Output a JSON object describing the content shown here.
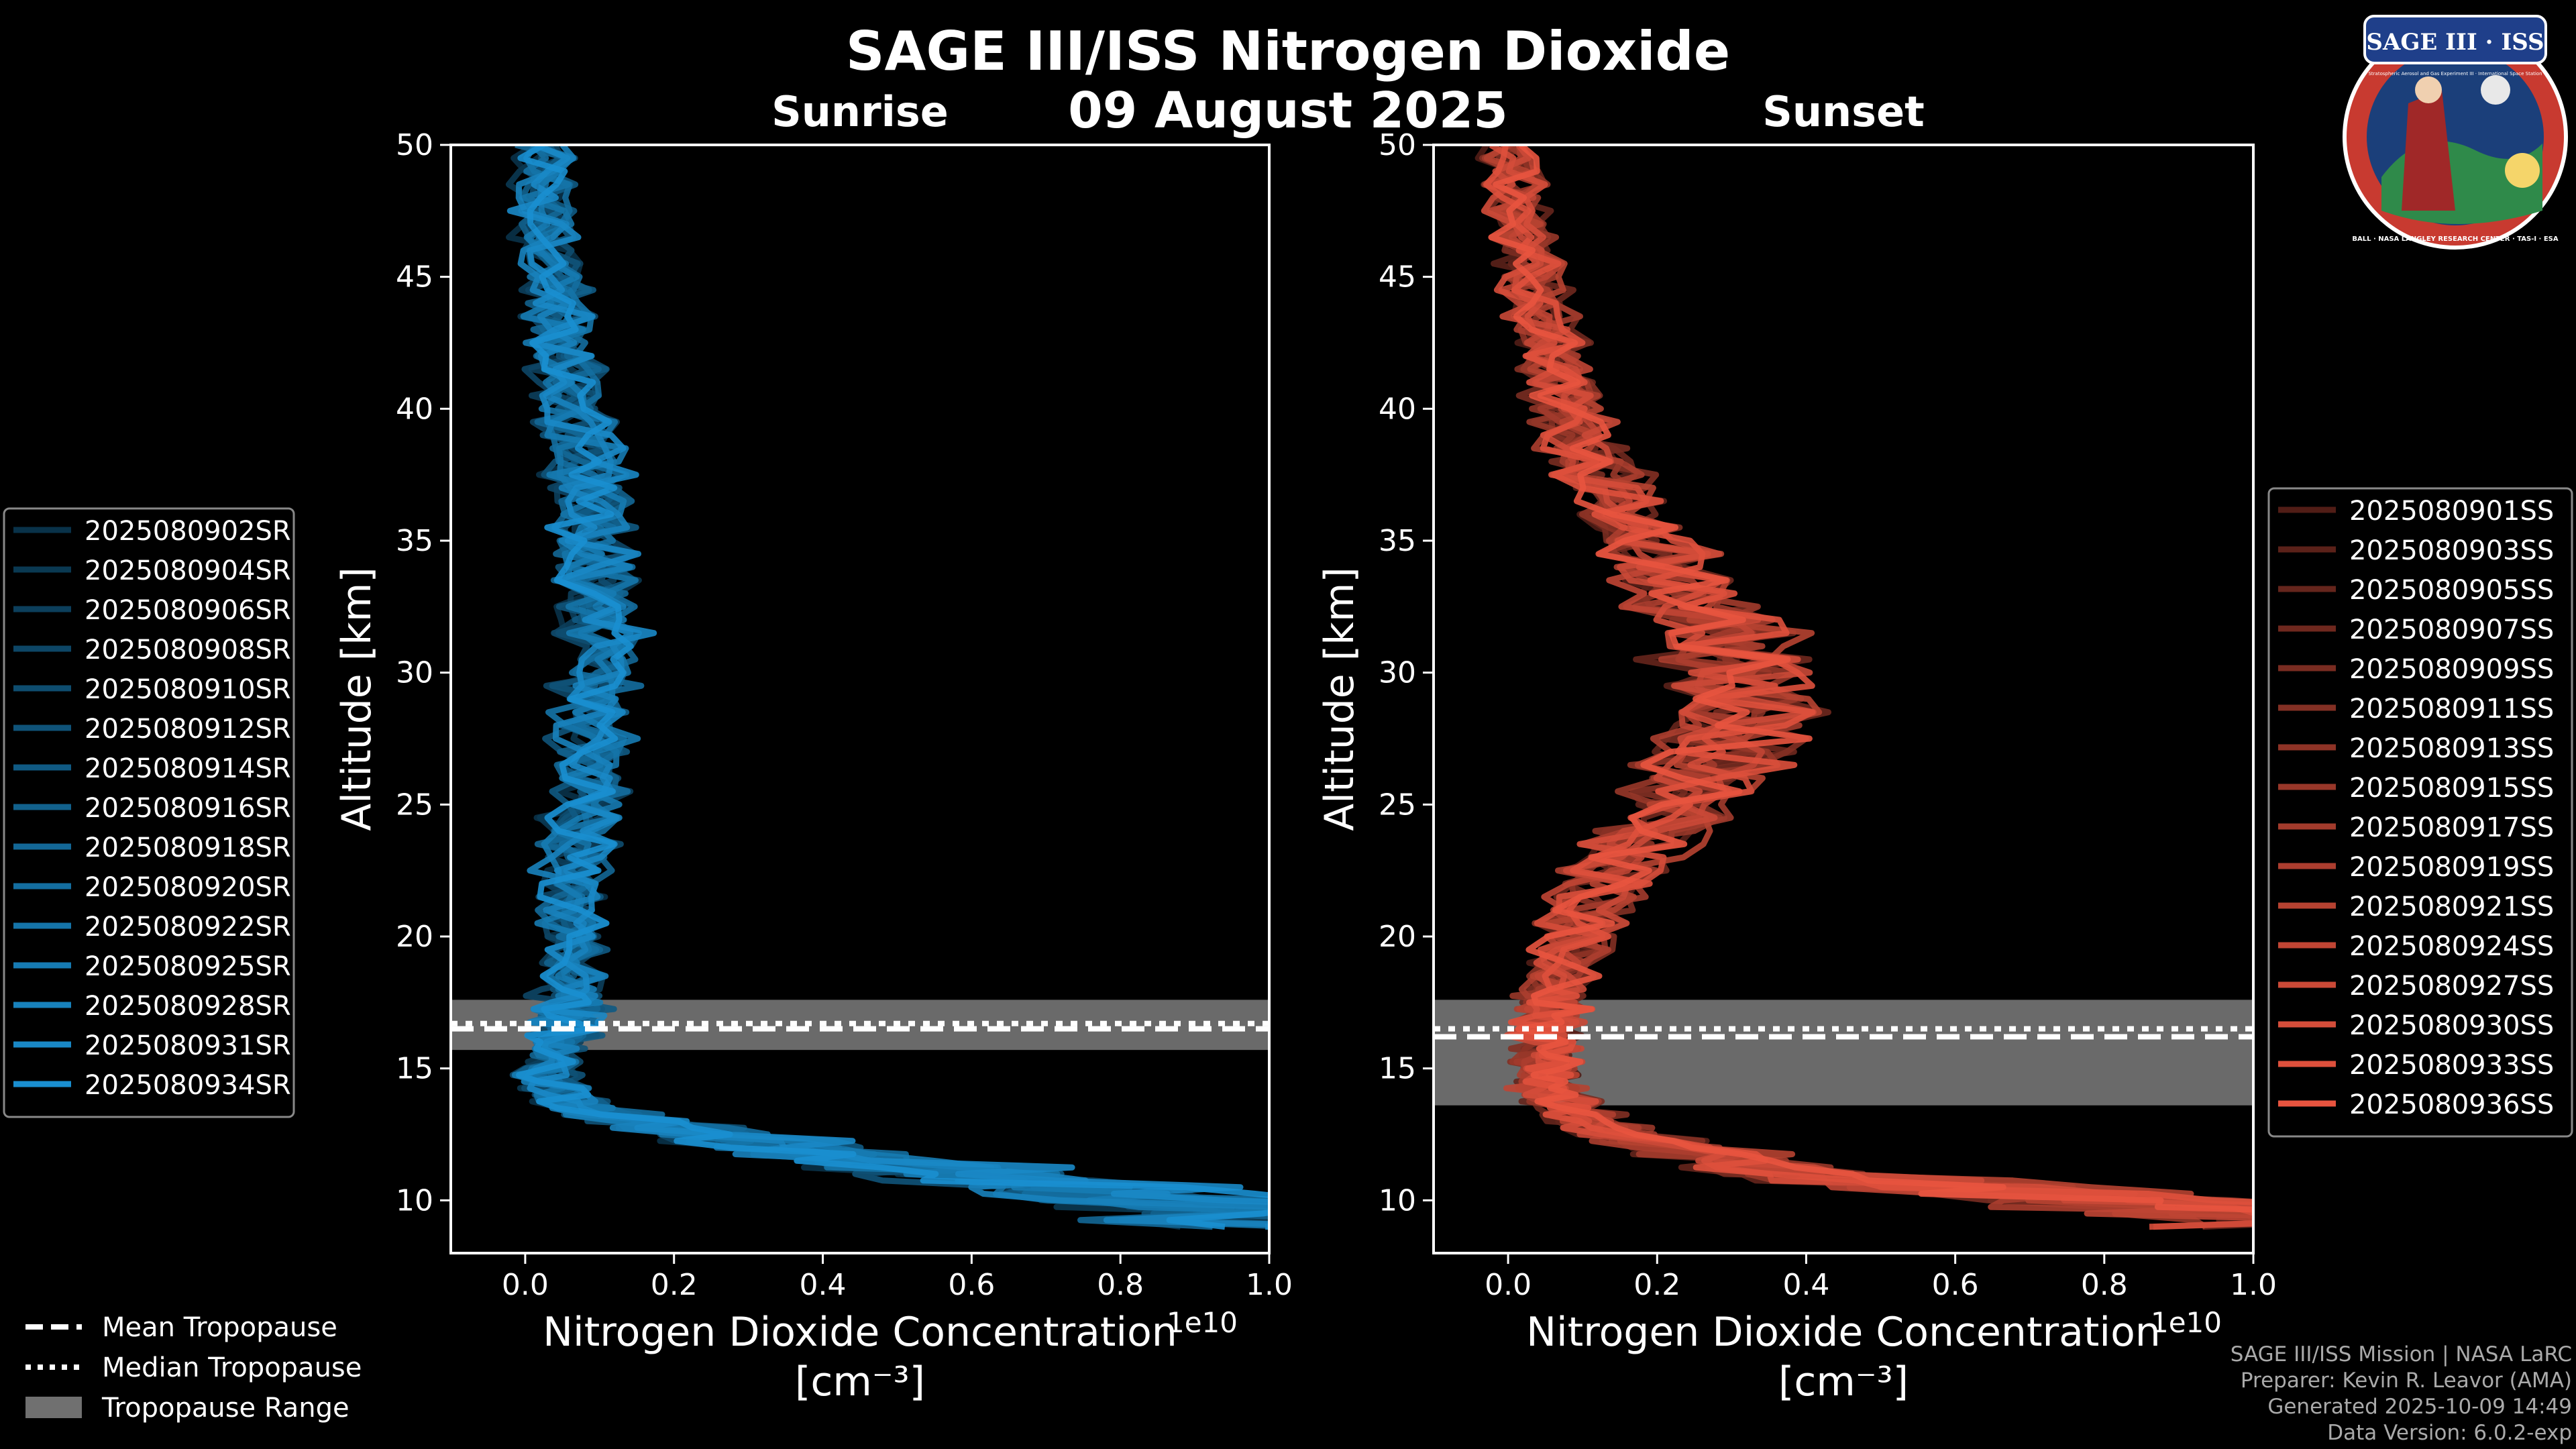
{
  "figure": {
    "title": "SAGE III/ISS Nitrogen Dioxide",
    "subtitle": "09 August 2025",
    "credits": [
      "SAGE III/ISS Mission | NASA LaRC",
      "Preparer: Kevin R. Leavor (AMA)",
      "Generated 2025-10-09 14:49",
      "Data Version: 6.0.2-exp"
    ],
    "logo": {
      "name": "SAGE III · ISS",
      "caption": "Stratospheric Aerosol and Gas Experiment III · International Space Station",
      "ring_text": "BALL · NASA LANGLEY RESEARCH CENTER · TAS-I · ESA"
    },
    "bottom_legend": [
      {
        "label": "Mean Tropopause",
        "style": "dashed"
      },
      {
        "label": "Median Tropopause",
        "style": "dotted"
      },
      {
        "label": "Tropopause Range",
        "style": "band"
      }
    ],
    "colors": {
      "sunrise": "#1a8fd0",
      "sunset": "#e8543f",
      "band": "#707070",
      "background": "#000000",
      "text": "#ffffff",
      "credit": "#aaaaaa"
    }
  },
  "chart_data": [
    {
      "type": "line",
      "title": "Sunrise",
      "xlabel": "Nitrogen Dioxide Concentration",
      "xlabel_units": "[cm⁻³]",
      "offset_label": "1e10",
      "ylabel": "Altitude [km]",
      "xlim": [
        -0.1,
        1.0
      ],
      "ylim": [
        8,
        50
      ],
      "xticks": [
        0.0,
        0.2,
        0.4,
        0.6,
        0.8,
        1.0
      ],
      "xtick_labels": [
        "0.0",
        "0.2",
        "0.4",
        "0.6",
        "0.8",
        "1.0"
      ],
      "yticks": [
        10,
        15,
        20,
        25,
        30,
        35,
        40,
        45,
        50
      ],
      "ytick_labels": [
        "10",
        "15",
        "20",
        "25",
        "30",
        "35",
        "40",
        "45",
        "50"
      ],
      "legend_position": "left",
      "tropopause": {
        "mean": 16.5,
        "median": 16.7,
        "range": [
          15.7,
          17.6
        ]
      },
      "altitude_km": [
        9,
        9.5,
        10,
        10.5,
        11,
        11.5,
        12,
        12.5,
        13,
        13.5,
        14,
        14.5,
        15,
        15.5,
        16,
        16.5,
        17,
        17.5,
        18,
        19,
        20,
        21,
        22,
        23,
        24,
        25,
        26,
        27,
        28,
        29,
        30,
        31,
        32,
        33,
        34,
        35,
        36,
        37,
        38,
        39,
        40,
        41,
        42,
        43,
        44,
        45,
        46,
        47,
        48,
        49,
        50
      ],
      "mean_profile": [
        1.1,
        1.0,
        0.9,
        0.75,
        0.6,
        0.45,
        0.35,
        0.25,
        0.15,
        0.08,
        0.05,
        0.03,
        0.03,
        0.04,
        0.05,
        0.06,
        0.06,
        0.06,
        0.06,
        0.06,
        0.06,
        0.06,
        0.06,
        0.07,
        0.07,
        0.08,
        0.08,
        0.09,
        0.09,
        0.09,
        0.1,
        0.1,
        0.1,
        0.1,
        0.1,
        0.09,
        0.09,
        0.08,
        0.08,
        0.07,
        0.06,
        0.06,
        0.05,
        0.05,
        0.04,
        0.04,
        0.03,
        0.03,
        0.02,
        0.02,
        0.02
      ],
      "series": [
        {
          "name": "2025080902SR",
          "scale": 0.92
        },
        {
          "name": "2025080904SR",
          "scale": 0.97
        },
        {
          "name": "2025080906SR",
          "scale": 1.02
        },
        {
          "name": "2025080908SR",
          "scale": 0.95
        },
        {
          "name": "2025080910SR",
          "scale": 1.05
        },
        {
          "name": "2025080912SR",
          "scale": 0.9
        },
        {
          "name": "2025080914SR",
          "scale": 1.08
        },
        {
          "name": "2025080916SR",
          "scale": 1.0
        },
        {
          "name": "2025080918SR",
          "scale": 0.94
        },
        {
          "name": "2025080920SR",
          "scale": 1.06
        },
        {
          "name": "2025080922SR",
          "scale": 0.98
        },
        {
          "name": "2025080925SR",
          "scale": 1.03
        },
        {
          "name": "2025080928SR",
          "scale": 0.96
        },
        {
          "name": "2025080931SR",
          "scale": 1.1
        },
        {
          "name": "2025080934SR",
          "scale": 1.0
        }
      ]
    },
    {
      "type": "line",
      "title": "Sunset",
      "xlabel": "Nitrogen Dioxide Concentration",
      "xlabel_units": "[cm⁻³]",
      "offset_label": "1e10",
      "ylabel": "Altitude [km]",
      "xlim": [
        -0.1,
        1.0
      ],
      "ylim": [
        8,
        50
      ],
      "xticks": [
        0.0,
        0.2,
        0.4,
        0.6,
        0.8,
        1.0
      ],
      "xtick_labels": [
        "0.0",
        "0.2",
        "0.4",
        "0.6",
        "0.8",
        "1.0"
      ],
      "yticks": [
        10,
        15,
        20,
        25,
        30,
        35,
        40,
        45,
        50
      ],
      "ytick_labels": [
        "10",
        "15",
        "20",
        "25",
        "30",
        "35",
        "40",
        "45",
        "50"
      ],
      "legend_position": "right",
      "tropopause": {
        "mean": 16.2,
        "median": 16.5,
        "range": [
          13.6,
          17.6
        ]
      },
      "altitude_km": [
        9,
        9.5,
        10,
        10.5,
        11,
        11.5,
        12,
        12.5,
        13,
        13.5,
        14,
        14.5,
        15,
        15.5,
        16,
        16.5,
        17,
        17.5,
        18,
        19,
        20,
        21,
        22,
        23,
        24,
        25,
        26,
        27,
        28,
        29,
        30,
        31,
        32,
        33,
        34,
        35,
        36,
        37,
        38,
        39,
        40,
        41,
        42,
        43,
        44,
        45,
        46,
        47,
        48,
        49,
        50
      ],
      "mean_profile": [
        1.1,
        1.0,
        0.8,
        0.6,
        0.4,
        0.3,
        0.22,
        0.15,
        0.1,
        0.08,
        0.06,
        0.05,
        0.05,
        0.05,
        0.05,
        0.05,
        0.06,
        0.06,
        0.06,
        0.07,
        0.09,
        0.11,
        0.13,
        0.16,
        0.19,
        0.22,
        0.26,
        0.29,
        0.31,
        0.32,
        0.31,
        0.29,
        0.27,
        0.24,
        0.21,
        0.18,
        0.15,
        0.13,
        0.11,
        0.09,
        0.08,
        0.07,
        0.06,
        0.05,
        0.04,
        0.03,
        0.03,
        0.02,
        0.01,
        0.01,
        0.0
      ],
      "series": [
        {
          "name": "2025080901SS",
          "scale": 0.95
        },
        {
          "name": "2025080903SS",
          "scale": 1.02
        },
        {
          "name": "2025080905SS",
          "scale": 0.9
        },
        {
          "name": "2025080907SS",
          "scale": 1.05
        },
        {
          "name": "2025080909SS",
          "scale": 0.97
        },
        {
          "name": "2025080911SS",
          "scale": 1.08
        },
        {
          "name": "2025080913SS",
          "scale": 0.93
        },
        {
          "name": "2025080915SS",
          "scale": 1.0
        },
        {
          "name": "2025080917SS",
          "scale": 1.04
        },
        {
          "name": "2025080919SS",
          "scale": 0.96
        },
        {
          "name": "2025080921SS",
          "scale": 1.1
        },
        {
          "name": "2025080924SS",
          "scale": 0.92
        },
        {
          "name": "2025080927SS",
          "scale": 1.03
        },
        {
          "name": "2025080930SS",
          "scale": 0.98
        },
        {
          "name": "2025080933SS",
          "scale": 1.06
        },
        {
          "name": "2025080936SS",
          "scale": 1.0
        }
      ]
    }
  ]
}
